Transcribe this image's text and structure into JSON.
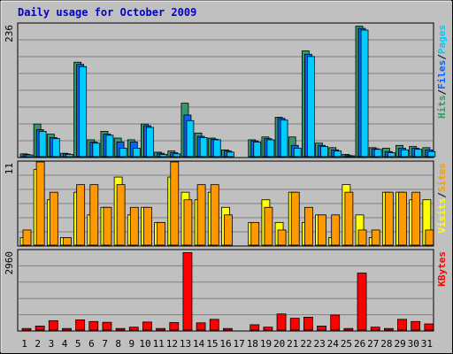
{
  "chart_data": [
    {
      "type": "bar",
      "title": "Daily usage for October 2009",
      "panel": "hits-files-pages",
      "ymax": 236,
      "ymax_label": "236",
      "categories": [
        "1",
        "2",
        "3",
        "4",
        "5",
        "6",
        "7",
        "8",
        "9",
        "10",
        "11",
        "12",
        "13",
        "14",
        "15",
        "16",
        "17",
        "18",
        "19",
        "20",
        "21",
        "22",
        "23",
        "24",
        "25",
        "26",
        "27",
        "28",
        "29",
        "30",
        "31"
      ],
      "series": [
        {
          "name": "Hits",
          "color": "#339966",
          "values": [
            5,
            58,
            40,
            6,
            168,
            30,
            45,
            33,
            30,
            58,
            8,
            10,
            95,
            42,
            33,
            12,
            0,
            30,
            35,
            70,
            35,
            188,
            24,
            16,
            4,
            232,
            16,
            15,
            20,
            18,
            16
          ]
        },
        {
          "name": "Files",
          "color": "#0066ff",
          "values": [
            4,
            48,
            34,
            5,
            164,
            26,
            40,
            26,
            26,
            55,
            6,
            7,
            74,
            36,
            31,
            10,
            0,
            28,
            32,
            68,
            20,
            182,
            20,
            12,
            2,
            228,
            14,
            9,
            15,
            15,
            12
          ]
        },
        {
          "name": "Pages",
          "color": "#00ccff",
          "values": [
            3,
            45,
            32,
            4,
            160,
            24,
            38,
            15,
            15,
            52,
            4,
            5,
            64,
            34,
            30,
            8,
            0,
            26,
            30,
            65,
            15,
            178,
            18,
            10,
            1,
            225,
            13,
            7,
            12,
            13,
            9
          ]
        }
      ],
      "legend_separator": "/"
    },
    {
      "type": "bar",
      "panel": "visits-sites",
      "ymax": 11,
      "ymax_label": "11",
      "series": [
        {
          "name": "Visits",
          "color": "#ffff00",
          "values": [
            1,
            10,
            6,
            1,
            7,
            4,
            5,
            9,
            4,
            5,
            3,
            9,
            7,
            6,
            7,
            5,
            0,
            3,
            6,
            3,
            7,
            3,
            4,
            1,
            8,
            4,
            1,
            7,
            7,
            6,
            6
          ]
        },
        {
          "name": "Sites",
          "color": "#ff9900",
          "values": [
            2,
            11,
            7,
            1,
            8,
            8,
            5,
            8,
            5,
            5,
            3,
            11,
            6,
            8,
            8,
            4,
            0,
            3,
            5,
            2,
            7,
            5,
            4,
            4,
            7,
            2,
            2,
            7,
            7,
            7,
            2
          ]
        }
      ],
      "legend_separator": "/"
    },
    {
      "type": "bar",
      "panel": "kbytes",
      "ymax": 2960,
      "ymax_label": "2960",
      "series": [
        {
          "name": "KBytes",
          "color": "#ff0000",
          "values": [
            60,
            150,
            350,
            60,
            380,
            320,
            290,
            60,
            110,
            300,
            60,
            280,
            2880,
            270,
            400,
            60,
            0,
            200,
            110,
            600,
            440,
            480,
            150,
            560,
            60,
            2120,
            110,
            60,
            400,
            320,
            230
          ]
        }
      ]
    }
  ],
  "colors": {
    "background": "#c0c0c0",
    "plot_area": "#c0c0c0",
    "gridline": "#808080",
    "weekend_label": "#00805c",
    "weekday_label": "#000000"
  },
  "weekend_days": [
    "3",
    "4",
    "10",
    "11",
    "17",
    "18",
    "24",
    "25",
    "31"
  ]
}
